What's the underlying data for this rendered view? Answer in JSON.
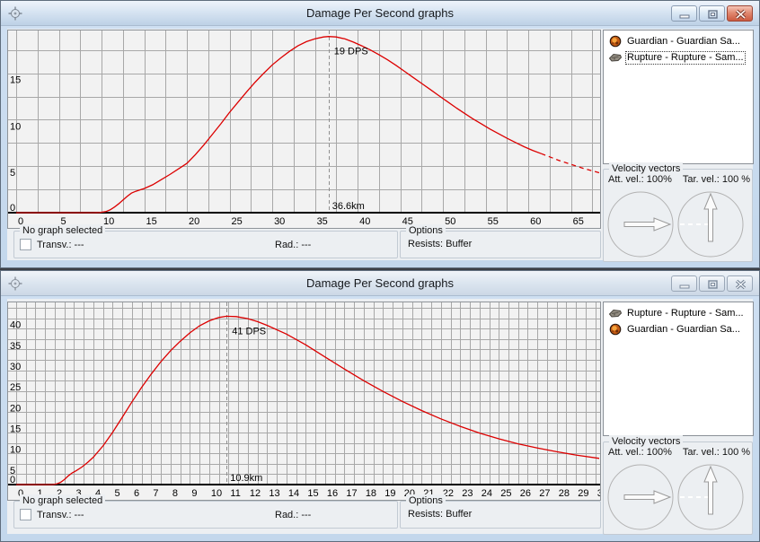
{
  "windows": [
    {
      "title": "Damage Per Second graphs",
      "state": "active",
      "controls": {
        "minimize": "minimize",
        "maximize": "maximize",
        "close": "close"
      },
      "legend_items": [
        {
          "icon": "guardian-ship-icon",
          "label": "Guardian - Guardian Sa...",
          "selected": false
        },
        {
          "icon": "rupture-ship-icon",
          "label": "Rupture - Rupture - Sam...",
          "selected": true
        }
      ],
      "velocity": {
        "title": "Velocity vectors",
        "att": "Att. vel.: 100%",
        "tar": "Tar. vel.: 100 %"
      },
      "footer": {
        "group_title": "No graph selected",
        "transversal": "Transv.: ---",
        "radial": "Rad.: ---",
        "options_title": "Options",
        "resists": "Resists: Buffer"
      }
    },
    {
      "title": "Damage Per Second graphs",
      "state": "inactive",
      "controls": {
        "minimize": "minimize",
        "maximize": "maximize",
        "close": "close"
      },
      "legend_items": [
        {
          "icon": "rupture-ship-icon",
          "label": "Rupture - Rupture - Sam...",
          "selected": false
        },
        {
          "icon": "guardian-ship-icon",
          "label": "Guardian - Guardian Sa...",
          "selected": false
        }
      ],
      "velocity": {
        "title": "Velocity vectors",
        "att": "Att. vel.: 100%",
        "tar": "Tar. vel.: 100 %"
      },
      "footer": {
        "group_title": "No graph selected",
        "transversal": "Transv.: ---",
        "radial": "Rad.: ---",
        "options_title": "Options",
        "resists": "Resists: Buffer"
      }
    }
  ],
  "chart_data": [
    {
      "type": "line",
      "title": "",
      "xlabel": "",
      "ylabel": "",
      "x_range": [
        0,
        68.3
      ],
      "y_range": [
        0,
        19.5
      ],
      "x_label_step": 5,
      "x_grid_step": 2.5,
      "y_label_step": 5,
      "y_grid_step": 2.5,
      "grid": true,
      "marker": {
        "x": 36.6,
        "peak_y": 18.95,
        "dps_label": "19 DPS",
        "range_label": "36.6km"
      },
      "series": [
        {
          "name": "Rupture - Rupture - Sam...",
          "color": "#dc0000",
          "points": [
            [
              0,
              0
            ],
            [
              5,
              0
            ],
            [
              9,
              0
            ],
            [
              9.8,
              0.02
            ],
            [
              10.5,
              0.12
            ],
            [
              11,
              0.3
            ],
            [
              11.5,
              0.6
            ],
            [
              12,
              0.95
            ],
            [
              12.5,
              1.35
            ],
            [
              13,
              1.75
            ],
            [
              13.5,
              2.1
            ],
            [
              14,
              2.3
            ],
            [
              14.5,
              2.45
            ],
            [
              15,
              2.6
            ],
            [
              16,
              3.0
            ],
            [
              17,
              3.55
            ],
            [
              18,
              4.1
            ],
            [
              19,
              4.7
            ],
            [
              20,
              5.3
            ],
            [
              21,
              6.25
            ],
            [
              22,
              7.3
            ],
            [
              23,
              8.45
            ],
            [
              24,
              9.6
            ],
            [
              25,
              10.8
            ],
            [
              26,
              11.9
            ],
            [
              27,
              13.0
            ],
            [
              28,
              14.05
            ],
            [
              29,
              15.0
            ],
            [
              30,
              15.9
            ],
            [
              31,
              16.65
            ],
            [
              32,
              17.35
            ],
            [
              33,
              17.95
            ],
            [
              34,
              18.4
            ],
            [
              35,
              18.7
            ],
            [
              36,
              18.9
            ],
            [
              36.6,
              18.95
            ],
            [
              37.5,
              18.9
            ],
            [
              38.5,
              18.7
            ],
            [
              39.5,
              18.35
            ],
            [
              40.5,
              17.95
            ],
            [
              41.5,
              17.5
            ],
            [
              42.5,
              17.0
            ],
            [
              43.5,
              16.45
            ],
            [
              44.5,
              15.85
            ],
            [
              45.5,
              15.2
            ],
            [
              46.5,
              14.55
            ],
            [
              47.5,
              13.9
            ],
            [
              48.5,
              13.25
            ],
            [
              49.5,
              12.6
            ],
            [
              50.5,
              11.95
            ],
            [
              51.5,
              11.3
            ],
            [
              52.5,
              10.7
            ],
            [
              53.5,
              10.1
            ],
            [
              54.5,
              9.55
            ],
            [
              55.5,
              9.0
            ],
            [
              56.5,
              8.5
            ],
            [
              57.5,
              8.0
            ],
            [
              58.5,
              7.55
            ],
            [
              59.5,
              7.1
            ],
            [
              60.5,
              6.7
            ],
            [
              61.5,
              6.35
            ]
          ],
          "points_out_of_range_dashed": [
            [
              61.5,
              6.35
            ],
            [
              62.5,
              6.0
            ],
            [
              63.5,
              5.65
            ],
            [
              64.5,
              5.35
            ],
            [
              65.5,
              5.05
            ],
            [
              66.5,
              4.75
            ],
            [
              67.5,
              4.5
            ],
            [
              68.3,
              4.3
            ]
          ]
        }
      ]
    },
    {
      "type": "line",
      "title": "",
      "xlabel": "",
      "ylabel": "",
      "x_range": [
        0,
        30.2
      ],
      "y_range": [
        0,
        43.6
      ],
      "x_label_step": 1,
      "x_grid_step": 0.5,
      "y_label_step": 5,
      "y_grid_step": 2.5,
      "grid": true,
      "marker": {
        "x": 10.9,
        "peak_y": 40.5,
        "dps_label": "41 DPS",
        "range_label": "10.9km"
      },
      "series": [
        {
          "name": "Rupture - Rupture - Sam...",
          "color": "#dc0000",
          "points": [
            [
              0,
              0
            ],
            [
              1,
              0
            ],
            [
              1.9,
              0
            ],
            [
              2.1,
              0.15
            ],
            [
              2.3,
              0.55
            ],
            [
              2.5,
              1.2
            ],
            [
              2.7,
              2.1
            ],
            [
              2.9,
              2.8
            ],
            [
              3.1,
              3.3
            ],
            [
              3.4,
              4.2
            ],
            [
              3.7,
              5.3
            ],
            [
              4,
              6.6
            ],
            [
              4.5,
              9.3
            ],
            [
              5,
              12.6
            ],
            [
              5.5,
              16.2
            ],
            [
              6,
              19.9
            ],
            [
              6.5,
              23.4
            ],
            [
              7,
              26.6
            ],
            [
              7.5,
              29.6
            ],
            [
              8,
              32.2
            ],
            [
              8.5,
              34.5
            ],
            [
              9,
              36.5
            ],
            [
              9.5,
              38.2
            ],
            [
              10,
              39.4
            ],
            [
              10.5,
              40.2
            ],
            [
              10.9,
              40.5
            ],
            [
              11.4,
              40.4
            ],
            [
              12,
              39.9
            ],
            [
              12.5,
              39.2
            ],
            [
              13,
              38.3
            ],
            [
              14,
              36.2
            ],
            [
              15,
              33.6
            ],
            [
              16,
              30.7
            ],
            [
              17,
              27.8
            ],
            [
              18,
              25.0
            ],
            [
              19,
              22.4
            ],
            [
              20,
              20.0
            ],
            [
              21,
              17.8
            ],
            [
              22,
              15.8
            ],
            [
              23,
              14.0
            ],
            [
              24,
              12.4
            ],
            [
              25,
              11.0
            ],
            [
              26,
              9.8
            ],
            [
              27,
              8.8
            ],
            [
              28,
              7.9
            ],
            [
              29,
              7.1
            ],
            [
              30.2,
              6.3
            ]
          ],
          "points_out_of_range_dashed": []
        }
      ]
    }
  ]
}
